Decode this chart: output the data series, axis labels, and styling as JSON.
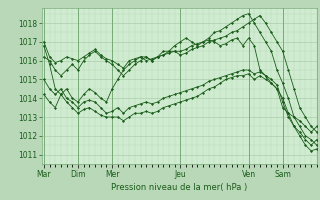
{
  "background_color": "#b8d8b8",
  "plot_bg_color": "#d0ecd0",
  "grid_color_major": "#a0c8a0",
  "grid_color_minor": "#b8d8b8",
  "line_color": "#1a5c1a",
  "ylim": [
    1010.5,
    1018.8
  ],
  "yticks": [
    1011,
    1012,
    1013,
    1014,
    1015,
    1016,
    1017,
    1018
  ],
  "xlabel": "Pression niveau de la mer( hPa )",
  "day_labels": [
    "Mar",
    "Dim",
    "Mer",
    "Jeu",
    "Ven",
    "Sam"
  ],
  "day_positions": [
    0,
    30,
    60,
    120,
    180,
    210
  ],
  "xlim": [
    -2,
    240
  ],
  "series": [
    [
      0,
      1017.0,
      5,
      1016.2,
      10,
      1015.9,
      15,
      1016.0,
      20,
      1016.2,
      25,
      1016.1,
      30,
      1016.0,
      35,
      1016.2,
      40,
      1016.4,
      45,
      1016.6,
      50,
      1016.3,
      55,
      1016.1,
      60,
      1016.0,
      65,
      1015.8,
      70,
      1015.6,
      75,
      1016.0,
      80,
      1016.1,
      85,
      1016.2,
      90,
      1016.2,
      95,
      1016.0,
      100,
      1016.2,
      105,
      1016.3,
      110,
      1016.4,
      115,
      1016.5,
      120,
      1016.3,
      125,
      1016.4,
      130,
      1016.6,
      135,
      1016.7,
      140,
      1016.8,
      145,
      1017.0,
      150,
      1017.1,
      155,
      1017.2,
      160,
      1017.3,
      165,
      1017.5,
      170,
      1017.6,
      175,
      1017.8,
      180,
      1018.0,
      185,
      1018.2,
      190,
      1018.4,
      195,
      1018.0,
      200,
      1017.5,
      205,
      1017.0,
      210,
      1016.5,
      215,
      1015.5,
      220,
      1014.5,
      225,
      1013.5,
      230,
      1013.0,
      235,
      1012.5,
      240,
      1012.2
    ],
    [
      0,
      1016.8,
      5,
      1015.8,
      10,
      1014.5,
      15,
      1014.2,
      20,
      1013.8,
      25,
      1013.5,
      30,
      1013.2,
      35,
      1013.4,
      40,
      1013.5,
      45,
      1013.3,
      50,
      1013.1,
      55,
      1013.0,
      60,
      1013.0,
      65,
      1013.0,
      70,
      1012.8,
      75,
      1013.0,
      80,
      1013.2,
      85,
      1013.2,
      90,
      1013.3,
      95,
      1013.2,
      100,
      1013.3,
      105,
      1013.5,
      110,
      1013.6,
      115,
      1013.7,
      120,
      1013.8,
      125,
      1013.9,
      130,
      1014.0,
      135,
      1014.1,
      140,
      1014.3,
      145,
      1014.5,
      150,
      1014.6,
      155,
      1014.8,
      160,
      1015.0,
      165,
      1015.1,
      170,
      1015.2,
      175,
      1015.2,
      180,
      1015.3,
      185,
      1015.0,
      190,
      1015.2,
      195,
      1015.0,
      200,
      1014.8,
      205,
      1014.5,
      210,
      1014.0,
      215,
      1013.2,
      220,
      1012.5,
      225,
      1012.0,
      230,
      1011.5,
      235,
      1011.2,
      240,
      1011.3
    ],
    [
      0,
      1015.0,
      5,
      1014.5,
      10,
      1014.2,
      15,
      1014.5,
      20,
      1014.0,
      25,
      1013.8,
      30,
      1013.5,
      35,
      1013.8,
      40,
      1013.9,
      45,
      1013.8,
      50,
      1013.5,
      55,
      1013.2,
      60,
      1013.3,
      65,
      1013.5,
      70,
      1013.2,
      75,
      1013.5,
      80,
      1013.6,
      85,
      1013.7,
      90,
      1013.8,
      95,
      1013.7,
      100,
      1013.8,
      105,
      1014.0,
      110,
      1014.1,
      115,
      1014.2,
      120,
      1014.3,
      125,
      1014.4,
      130,
      1014.5,
      135,
      1014.6,
      140,
      1014.7,
      145,
      1014.9,
      150,
      1015.0,
      155,
      1015.1,
      160,
      1015.2,
      165,
      1015.3,
      170,
      1015.4,
      175,
      1015.5,
      180,
      1015.5,
      185,
      1015.3,
      190,
      1015.4,
      195,
      1015.2,
      200,
      1015.0,
      205,
      1014.7,
      210,
      1013.8,
      215,
      1013.0,
      220,
      1012.5,
      225,
      1012.2,
      230,
      1011.8,
      235,
      1011.5,
      240,
      1011.8
    ],
    [
      0,
      1014.2,
      5,
      1013.8,
      10,
      1013.5,
      15,
      1014.2,
      20,
      1014.5,
      25,
      1014.0,
      30,
      1013.8,
      35,
      1014.2,
      40,
      1014.5,
      45,
      1014.3,
      50,
      1014.0,
      55,
      1013.8,
      60,
      1014.5,
      65,
      1015.0,
      70,
      1015.5,
      75,
      1015.8,
      80,
      1016.0,
      85,
      1016.2,
      90,
      1016.0,
      95,
      1016.1,
      100,
      1016.2,
      105,
      1016.3,
      110,
      1016.5,
      115,
      1016.5,
      120,
      1016.5,
      125,
      1016.6,
      130,
      1016.8,
      135,
      1016.9,
      140,
      1017.0,
      145,
      1017.1,
      150,
      1017.0,
      155,
      1016.8,
      160,
      1016.9,
      165,
      1017.1,
      170,
      1017.2,
      175,
      1016.8,
      180,
      1017.2,
      185,
      1016.8,
      190,
      1015.5,
      195,
      1015.2,
      200,
      1014.8,
      205,
      1014.5,
      210,
      1013.5,
      215,
      1013.2,
      220,
      1013.0,
      225,
      1012.8,
      230,
      1012.5,
      235,
      1012.2,
      240,
      1012.5
    ],
    [
      0,
      1016.2,
      5,
      1016.0,
      10,
      1015.5,
      15,
      1015.2,
      20,
      1015.5,
      25,
      1015.8,
      30,
      1015.5,
      35,
      1016.0,
      40,
      1016.3,
      45,
      1016.5,
      50,
      1016.2,
      55,
      1016.0,
      60,
      1015.8,
      65,
      1015.5,
      70,
      1015.2,
      75,
      1015.5,
      80,
      1015.8,
      85,
      1016.0,
      90,
      1016.2,
      95,
      1016.0,
      100,
      1016.2,
      105,
      1016.5,
      110,
      1016.5,
      115,
      1016.8,
      120,
      1017.0,
      125,
      1017.2,
      130,
      1017.0,
      135,
      1016.8,
      140,
      1017.0,
      145,
      1017.2,
      150,
      1017.5,
      155,
      1017.6,
      160,
      1017.8,
      165,
      1018.0,
      170,
      1018.2,
      175,
      1018.4,
      180,
      1018.5,
      185,
      1018.0,
      190,
      1017.5,
      195,
      1017.0,
      200,
      1016.5,
      205,
      1015.5,
      210,
      1014.8,
      215,
      1014.0,
      220,
      1013.0,
      225,
      1012.5,
      230,
      1012.0,
      235,
      1011.8,
      240,
      1011.5
    ]
  ]
}
